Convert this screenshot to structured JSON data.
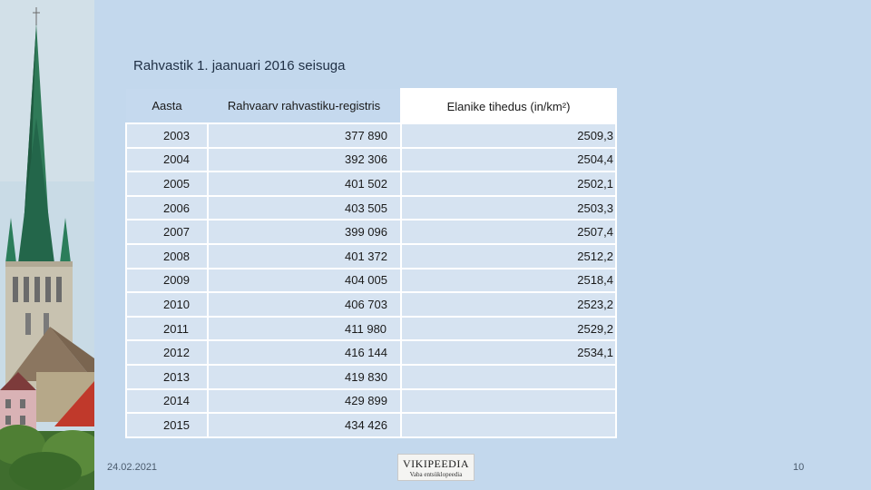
{
  "slide": {
    "title": "Rahvastik 1. jaanuari 2016 seisuga",
    "date": "24.02.2021",
    "page_number": "10"
  },
  "table": {
    "headers": [
      "Aasta",
      "Rahvaarv rahvastiku-registris",
      "Elanike tihedus (in/km²)"
    ],
    "rows": [
      {
        "year": "2003",
        "population": "377 890",
        "density": "2509,3"
      },
      {
        "year": "2004",
        "population": "392 306",
        "density": "2504,4"
      },
      {
        "year": "2005",
        "population": "401 502",
        "density": "2502,1"
      },
      {
        "year": "2006",
        "population": "403 505",
        "density": "2503,3"
      },
      {
        "year": "2007",
        "population": "399 096",
        "density": "2507,4"
      },
      {
        "year": "2008",
        "population": "401 372",
        "density": "2512,2"
      },
      {
        "year": "2009",
        "population": "404 005",
        "density": "2518,4"
      },
      {
        "year": "2010",
        "population": "406 703",
        "density": "2523,2"
      },
      {
        "year": "2011",
        "population": "411 980",
        "density": "2529,2"
      },
      {
        "year": "2012",
        "population": "416 144",
        "density": "2534,1"
      },
      {
        "year": "2013",
        "population": "419 830",
        "density": ""
      },
      {
        "year": "2014",
        "population": "429 899",
        "density": ""
      },
      {
        "year": "2015",
        "population": "434 426",
        "density": ""
      }
    ]
  },
  "logo": {
    "name": "VIKIPEEDIA",
    "tagline": "Vaba entsüklopeedia"
  },
  "colors": {
    "background": "#c5d9ee",
    "cell": "#d6e3f1",
    "border": "#ffffff"
  }
}
